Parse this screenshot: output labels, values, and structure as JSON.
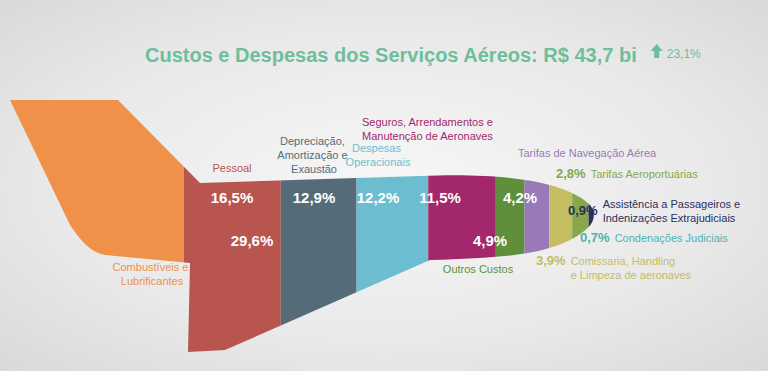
{
  "chart_data": {
    "type": "bar",
    "orientation": "horizontal",
    "stacked": true,
    "data_labels": true,
    "tick_labels": false,
    "title": "Custos e Despesas dos Serviços Aéreos: R$ 43,7 bi",
    "annotations": [
      "23,1%"
    ],
    "categories": [
      null
    ],
    "series": [
      {
        "name": "Combustíveis e Lubrificantes",
        "color": "#f0914a",
        "values": [
          29.6
        ],
        "value_labels": [
          "29,6%"
        ]
      },
      {
        "name": "Pessoal",
        "color": "#b8554f",
        "values": [
          16.5
        ],
        "value_labels": [
          "16,5%"
        ]
      },
      {
        "name": "Depreciação, Amortização e Exaustão",
        "color": "#566b78",
        "values": [
          12.9
        ],
        "value_labels": [
          "12,9%"
        ]
      },
      {
        "name": "Despesas Operacionais",
        "color": "#6dbdd0",
        "values": [
          12.2
        ],
        "value_labels": [
          "12,2%"
        ]
      },
      {
        "name": "Seguros, Arrendamentos e Manutenção de Aeronaves",
        "color": "#a3286b",
        "values": [
          11.5
        ],
        "value_labels": [
          "11,5%"
        ]
      },
      {
        "name": "Outros Custos",
        "color": "#5f8f3b",
        "values": [
          4.9
        ],
        "value_labels": [
          "4,9%"
        ]
      },
      {
        "name": "Tarifas de Navegação Aérea",
        "color": "#9a79b9",
        "values": [
          4.2
        ],
        "value_labels": [
          "4,2%"
        ]
      },
      {
        "name": "Comissaria, Handling e Limpeza de aeronaves",
        "color": "#c4bd62",
        "values": [
          3.9
        ],
        "value_labels": [
          "3,9%"
        ]
      },
      {
        "name": "Tarifas Aeroportuárias",
        "color": "#86a84a",
        "values": [
          2.8
        ],
        "value_labels": [
          "2,8%"
        ]
      },
      {
        "name": "Assistência a Passageiros e Indenizações Extrajudiciais",
        "color": "#2b2f5e",
        "values": [
          0.9
        ],
        "value_labels": [
          "0,9%"
        ]
      },
      {
        "name": "Condenações Judiciais",
        "color": "#4fb2b0",
        "values": [
          0.7
        ],
        "value_labels": [
          "0,7%"
        ]
      }
    ]
  }
}
